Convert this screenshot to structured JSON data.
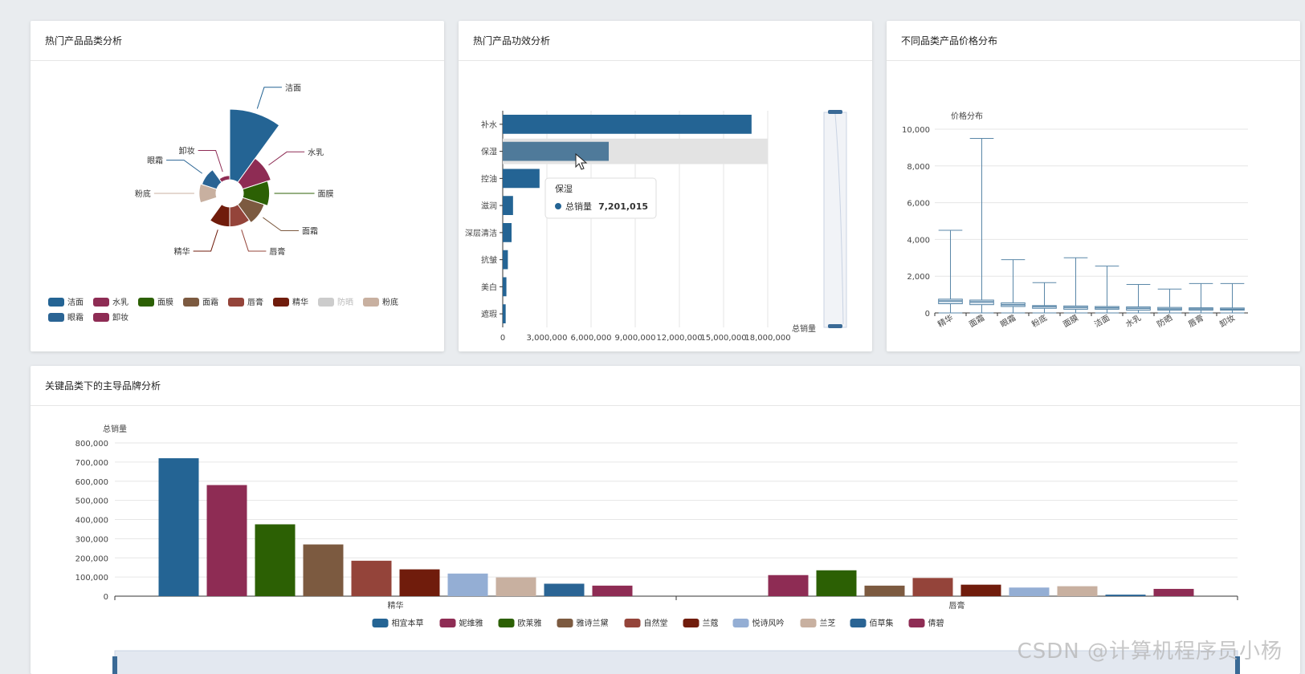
{
  "panels": {
    "p1_title": "热门产品品类分析",
    "p2_title": "热门产品功效分析",
    "p3_title": "不同品类产品价格分布",
    "p4_title": "关键品类下的主导品牌分析"
  },
  "watermark": "CSDN @计算机程序员小杨",
  "chart_data": [
    {
      "type": "pie",
      "variant": "rose",
      "categories": [
        "洁面",
        "水乳",
        "面膜",
        "面霜",
        "唇膏",
        "精华",
        "防晒",
        "粉底",
        "眼霜",
        "卸妆"
      ],
      "values": [
        100,
        42,
        37,
        32,
        28,
        28,
        0,
        24,
        22,
        6
      ],
      "colors": [
        "#246494",
        "#8e2c54",
        "#2c6004",
        "#7c5a40",
        "#94443a",
        "#701c0c",
        "#b6b6b6",
        "#c8b0a0",
        "#2a6494",
        "#8e2c54"
      ],
      "legend": {
        "position": "bottom",
        "disabled": [
          "防晒"
        ]
      }
    },
    {
      "type": "bar",
      "orientation": "horizontal",
      "categories": [
        "补水",
        "保湿",
        "控油",
        "滋润",
        "深层清洁",
        "抗皱",
        "美白",
        "遮瑕"
      ],
      "values": [
        16900000,
        7201015,
        2500000,
        700000,
        600000,
        350000,
        250000,
        200000
      ],
      "xlabel": "总销量",
      "xlim": [
        0,
        18000000
      ],
      "xticks": [
        "0",
        "3,000,000",
        "6,000,000",
        "9,000,000",
        "12,000,000",
        "15,000,000",
        "18,000,000"
      ],
      "tooltip": {
        "category": "保湿",
        "series": "总销量",
        "value": "7,201,015"
      }
    },
    {
      "type": "boxplot",
      "categories": [
        "精华",
        "面霜",
        "眼霜",
        "粉底",
        "面膜",
        "洁面",
        "水乳",
        "防晒",
        "唇膏",
        "卸妆"
      ],
      "boxes": [
        {
          "min": 0,
          "q1": 500,
          "median": 650,
          "q3": 750,
          "max": 4500
        },
        {
          "min": 0,
          "q1": 450,
          "median": 600,
          "q3": 700,
          "max": 9500
        },
        {
          "min": 0,
          "q1": 350,
          "median": 450,
          "q3": 550,
          "max": 2900
        },
        {
          "min": 0,
          "q1": 250,
          "median": 350,
          "q3": 400,
          "max": 1650
        },
        {
          "min": 0,
          "q1": 200,
          "median": 300,
          "q3": 380,
          "max": 3000
        },
        {
          "min": 0,
          "q1": 200,
          "median": 280,
          "q3": 350,
          "max": 2550
        },
        {
          "min": 0,
          "q1": 150,
          "median": 250,
          "q3": 330,
          "max": 1550
        },
        {
          "min": 0,
          "q1": 150,
          "median": 220,
          "q3": 300,
          "max": 1300
        },
        {
          "min": 0,
          "q1": 150,
          "median": 220,
          "q3": 280,
          "max": 1600
        },
        {
          "min": 0,
          "q1": 150,
          "median": 200,
          "q3": 270,
          "max": 1600
        }
      ],
      "ylabel": "价格分布",
      "ylim": [
        0,
        10000
      ],
      "yticks": [
        "0",
        "2,000",
        "4,000",
        "6,000",
        "8,000",
        "10,000"
      ]
    },
    {
      "type": "bar",
      "categories": [
        "精华",
        "唇膏"
      ],
      "series": [
        {
          "name": "相宜本草",
          "color": "#246494",
          "values": [
            720000,
            0
          ]
        },
        {
          "name": "妮维雅",
          "color": "#8e2c54",
          "values": [
            580000,
            110000
          ]
        },
        {
          "name": "欧莱雅",
          "color": "#2c6004",
          "values": [
            375000,
            135000
          ]
        },
        {
          "name": "雅诗兰黛",
          "color": "#7c5a40",
          "values": [
            270000,
            55000
          ]
        },
        {
          "name": "自然堂",
          "color": "#94443a",
          "values": [
            185000,
            95000
          ]
        },
        {
          "name": "兰蔻",
          "color": "#701c0c",
          "values": [
            140000,
            60000
          ]
        },
        {
          "name": "悦诗风吟",
          "color": "#94aed4",
          "values": [
            118000,
            45000
          ]
        },
        {
          "name": "兰芝",
          "color": "#c8b0a0",
          "values": [
            98000,
            52000
          ]
        },
        {
          "name": "佰草集",
          "color": "#2a6494",
          "values": [
            65000,
            8000
          ]
        },
        {
          "name": "倩碧",
          "color": "#8e2c54",
          "values": [
            55000,
            38000
          ]
        }
      ],
      "ylabel": "总销量",
      "ylim": [
        0,
        800000
      ],
      "yticks": [
        "0",
        "100,000",
        "200,000",
        "300,000",
        "400,000",
        "500,000",
        "600,000",
        "700,000",
        "800,000"
      ],
      "legend": {
        "position": "bottom"
      }
    }
  ]
}
